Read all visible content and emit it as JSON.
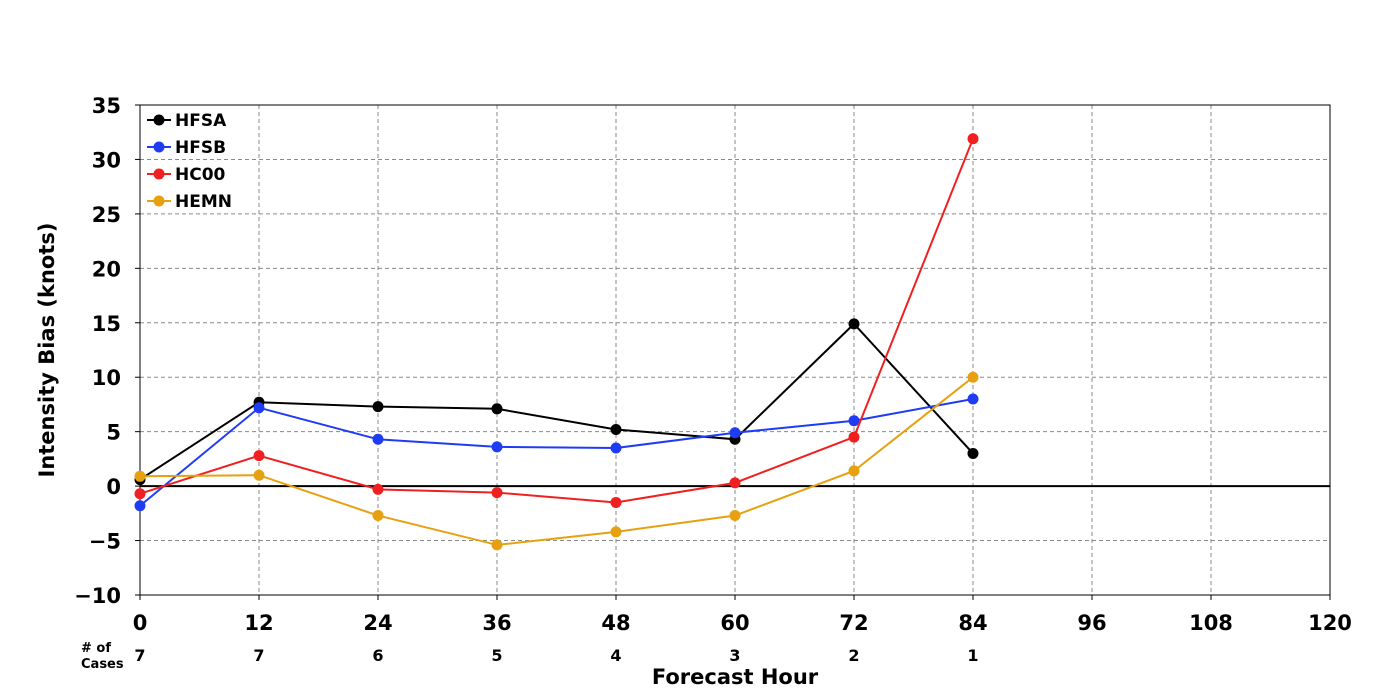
{
  "chart_data": {
    "type": "line",
    "xlabel": "Forecast Hour",
    "ylabel": "Intensity Bias (knots)",
    "xlim": [
      0,
      120
    ],
    "ylim": [
      -10,
      35
    ],
    "x_ticks": [
      0,
      12,
      24,
      36,
      48,
      60,
      72,
      84,
      96,
      108,
      120
    ],
    "y_ticks": [
      -10,
      -5,
      0,
      5,
      10,
      15,
      20,
      25,
      30,
      35
    ],
    "x_tick_labels": [
      "0",
      "12",
      "24",
      "36",
      "48",
      "60",
      "72",
      "84",
      "96",
      "108",
      "120"
    ],
    "y_tick_labels": [
      "−10",
      "−5",
      "0",
      "5",
      "10",
      "15",
      "20",
      "25",
      "30",
      "35"
    ],
    "grid": true,
    "legend_position": "top-left",
    "cases_label_line1": "# of",
    "cases_label_line2": "Cases",
    "cases": [
      {
        "x": 0,
        "n": "7"
      },
      {
        "x": 12,
        "n": "7"
      },
      {
        "x": 24,
        "n": "6"
      },
      {
        "x": 36,
        "n": "5"
      },
      {
        "x": 48,
        "n": "4"
      },
      {
        "x": 60,
        "n": "3"
      },
      {
        "x": 72,
        "n": "2"
      },
      {
        "x": 84,
        "n": "1"
      }
    ],
    "x": [
      0,
      12,
      24,
      36,
      48,
      60,
      72,
      84
    ],
    "series": [
      {
        "name": "HFSA",
        "color": "#000000",
        "values": [
          0.6,
          7.7,
          7.3,
          7.1,
          5.2,
          4.3,
          14.9,
          3.0
        ]
      },
      {
        "name": "HFSB",
        "color": "#1f3cf5",
        "values": [
          -1.8,
          7.2,
          4.3,
          3.6,
          3.5,
          4.9,
          6.0,
          8.0
        ]
      },
      {
        "name": "HC00",
        "color": "#f02020",
        "values": [
          -0.7,
          2.8,
          -0.3,
          -0.6,
          -1.5,
          0.3,
          4.5,
          31.9
        ]
      },
      {
        "name": "HEMN",
        "color": "#e6a010",
        "values": [
          0.9,
          1.0,
          -2.7,
          -5.4,
          -4.2,
          -2.7,
          1.4,
          10.0
        ]
      }
    ]
  }
}
